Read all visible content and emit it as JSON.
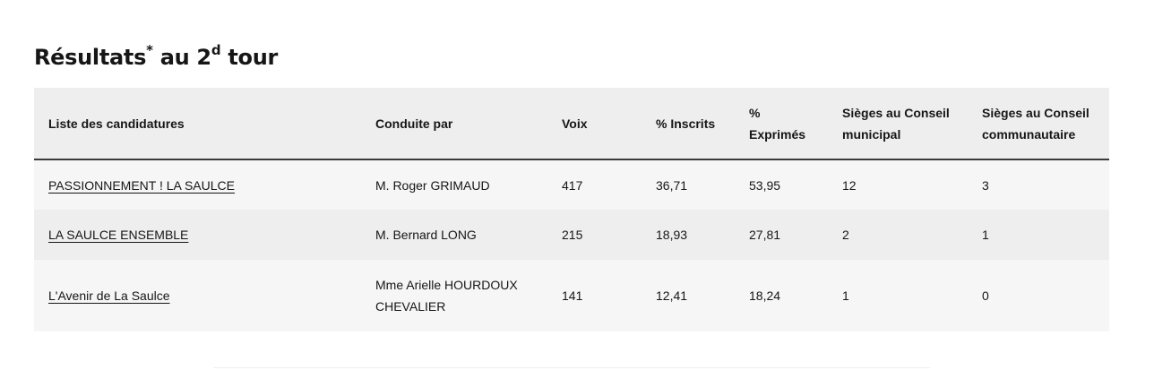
{
  "heading": {
    "prefix": "Résultats",
    "star": "*",
    "middle": " au 2",
    "sup": "d",
    "suffix": " tour"
  },
  "table": {
    "headers": [
      "Liste des candidatures",
      "Conduite par",
      "Voix",
      "% Inscrits",
      "% Exprimés",
      "Sièges au Conseil municipal",
      "Sièges au Conseil communautaire"
    ],
    "rows": [
      {
        "liste": "PASSIONNEMENT ! LA SAULCE",
        "conduite": "M. Roger GRIMAUD",
        "voix": "417",
        "inscrits": "36,71",
        "exprimes": "53,95",
        "sieges_municipal": "12",
        "sieges_communautaire": "3"
      },
      {
        "liste": "LA SAULCE ENSEMBLE",
        "conduite": "M. Bernard LONG",
        "voix": "215",
        "inscrits": "18,93",
        "exprimes": "27,81",
        "sieges_municipal": "2",
        "sieges_communautaire": "1"
      },
      {
        "liste": "L'Avenir de La Saulce",
        "conduite": "Mme Arielle HOURDOUX CHEVALIER",
        "voix": "141",
        "inscrits": "12,41",
        "exprimes": "18,24",
        "sieges_municipal": "1",
        "sieges_communautaire": "0"
      }
    ]
  }
}
